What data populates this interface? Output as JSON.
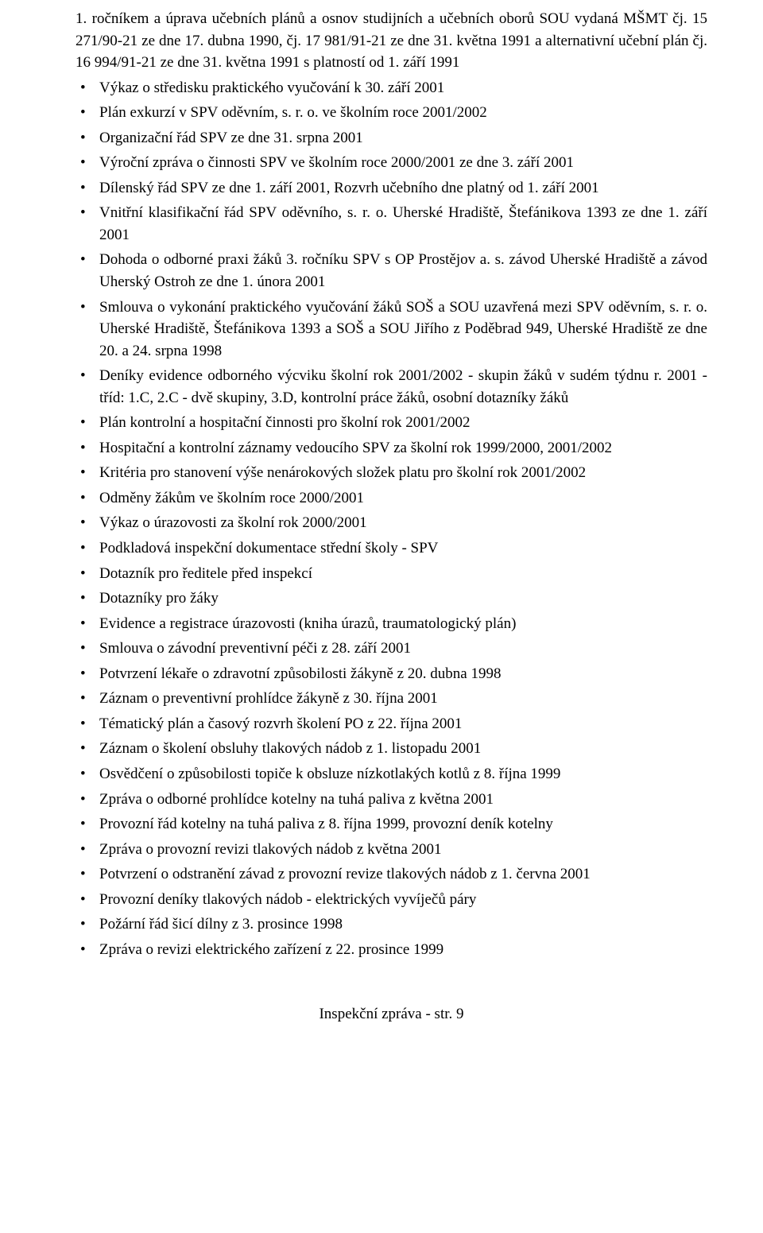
{
  "intro": "1. ročníkem a úprava učebních plánů a osnov studijních a učebních oborů SOU vydaná MŠMT čj. 15 271/90-21 ze dne 17. dubna 1990, čj. 17 981/91-21 ze dne 31. května 1991 a alternativní učební plán čj. 16 994/91-21 ze dne 31. května 1991 s platností od 1. září 1991",
  "items": [
    "Výkaz o středisku praktického vyučování k 30. září 2001",
    "Plán exkurzí v SPV oděvním, s. r. o. ve školním roce 2001/2002",
    "Organizační řád SPV ze dne 31. srpna 2001",
    "Výroční zpráva o činnosti SPV ve školním roce 2000/2001 ze dne 3. září 2001",
    "Dílenský řád SPV ze dne 1. září 2001, Rozvrh učebního dne platný od 1. září 2001",
    "Vnitřní klasifikační řád SPV oděvního, s. r. o. Uherské Hradiště, Štefánikova 1393 ze dne 1. září 2001",
    "Dohoda o odborné praxi žáků 3. ročníku SPV s OP Prostějov a. s. závod Uherské Hradiště a závod Uherský Ostroh ze dne 1. února 2001",
    "Smlouva o vykonání praktického vyučování žáků SOŠ a SOU uzavřená mezi SPV oděvním, s. r. o. Uherské Hradiště, Štefánikova 1393 a SOŠ a SOU Jiřího z Poděbrad 949, Uherské Hradiště ze dne 20. a 24. srpna 1998",
    "Deníky evidence odborného výcviku školní rok 2001/2002 - skupin žáků v sudém týdnu r. 2001 - tříd: 1.C, 2.C - dvě skupiny, 3.D, kontrolní práce žáků, osobní dotazníky žáků",
    "Plán kontrolní a hospitační činnosti pro školní rok 2001/2002",
    "Hospitační a kontrolní záznamy vedoucího SPV za školní rok 1999/2000, 2001/2002",
    "Kritéria pro stanovení výše nenárokových složek platu pro školní rok 2001/2002",
    "Odměny žákům ve školním roce 2000/2001",
    "Výkaz o úrazovosti za školní rok 2000/2001",
    "Podkladová inspekční dokumentace střední školy - SPV",
    "Dotazník pro ředitele před inspekcí",
    "Dotazníky pro žáky",
    "Evidence a registrace úrazovosti (kniha úrazů, traumatologický plán)",
    "Smlouva o závodní preventivní péči z 28. září 2001",
    "Potvrzení lékaře o zdravotní způsobilosti žákyně z 20. dubna 1998",
    "Záznam o preventivní prohlídce žákyně z 30. října 2001",
    "Tématický plán a časový rozvrh školení PO z 22. října 2001",
    "Záznam o školení obsluhy tlakových nádob z 1. listopadu 2001",
    "Osvědčení o způsobilosti topiče k obsluze nízkotlakých kotlů z 8. října 1999",
    "Zpráva o odborné prohlídce kotelny na tuhá paliva z května 2001",
    "Provozní řád kotelny na tuhá paliva z 8. října 1999, provozní deník kotelny",
    "Zpráva o provozní revizi tlakových nádob z května 2001",
    "Potvrzení o odstranění závad z provozní revize tlakových nádob z 1. června 2001",
    "Provozní deníky tlakových nádob - elektrických vyvíječů páry",
    "Požární řád šicí dílny z 3. prosince 1998",
    "Zpráva o revizi elektrického zařízení z 22. prosince 1999"
  ],
  "footer": "Inspekční zpráva - str. 9"
}
